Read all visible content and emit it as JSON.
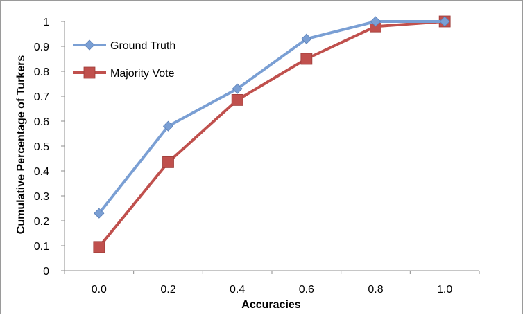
{
  "chart_data": {
    "type": "line",
    "title": "",
    "xlabel": "Accuracies",
    "ylabel": "Cumulative Percentage of Turkers",
    "x": [
      "0.0",
      "0.2",
      "0.4",
      "0.6",
      "0.8",
      "1.0"
    ],
    "ylim": [
      0,
      1
    ],
    "yticks": [
      "0",
      "0.1",
      "0.2",
      "0.3",
      "0.4",
      "0.5",
      "0.6",
      "0.7",
      "0.8",
      "0.9",
      "1"
    ],
    "grid": false,
    "legend_position": "top-left",
    "series": [
      {
        "name": "Ground Truth",
        "values": [
          0.23,
          0.58,
          0.73,
          0.93,
          1.0,
          1.0
        ],
        "color": "#7a9fd4",
        "marker": "diamond"
      },
      {
        "name": "Majority Vote",
        "values": [
          0.095,
          0.435,
          0.685,
          0.85,
          0.98,
          1.0
        ],
        "color": "#c0504d",
        "marker": "square"
      }
    ]
  }
}
